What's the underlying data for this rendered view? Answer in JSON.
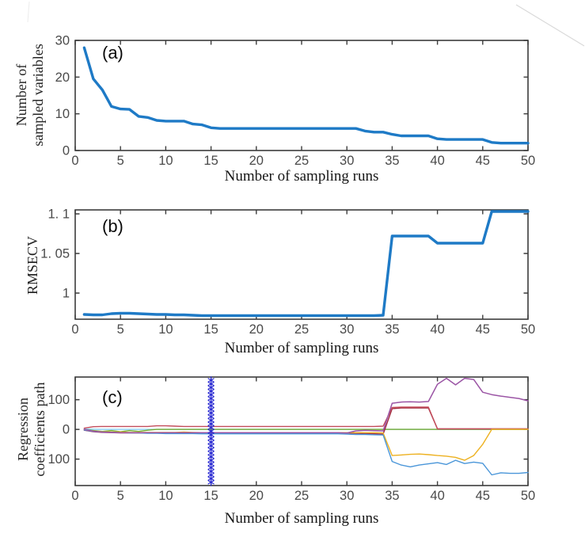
{
  "colors": {
    "axis": "#3c3c3c",
    "tick_label": "#4a4a4a",
    "label_text": "#161616",
    "main_line": "#1e7ac6",
    "marker_blue": "#2d2dd2",
    "scan_artifact": "#c9c9c9"
  },
  "chart_data": [
    {
      "type": "line",
      "tag": "(a)",
      "xlabel": "Number of sampling runs",
      "ylabel_line1": "Number of",
      "ylabel_line2": "sampled variables",
      "xlim": [
        0,
        50
      ],
      "ylim": [
        0,
        30
      ],
      "x_ticks": [
        0,
        5,
        10,
        15,
        20,
        25,
        30,
        35,
        40,
        45,
        50
      ],
      "x_tick_labels": [
        "0",
        "5",
        "10",
        "15",
        "20",
        "25",
        "30",
        "35",
        "40",
        "45",
        "50"
      ],
      "y_ticks": [
        0,
        10,
        20,
        30
      ],
      "y_tick_labels": [
        "0",
        "10",
        "20",
        "30"
      ],
      "grid": false,
      "x_first": 1,
      "x_step": 1,
      "series": [
        {
          "name": "number-of-sampled-variables",
          "color": "#1e7ac6",
          "width": 3.4,
          "values": [
            28,
            19.5,
            16.5,
            12,
            11.3,
            11.2,
            9.3,
            9,
            8.2,
            8,
            8,
            8,
            7.2,
            7,
            6.2,
            6,
            6,
            6,
            6,
            6,
            6,
            6,
            6,
            6,
            6,
            6,
            6,
            6,
            6,
            6,
            6,
            5.3,
            5,
            5,
            4.4,
            4,
            4,
            4,
            4,
            3.2,
            3,
            3,
            3,
            3,
            3,
            2.2,
            2,
            2,
            2,
            2
          ]
        }
      ]
    },
    {
      "type": "line",
      "tag": "(b)",
      "xlabel": "Number of sampling runs",
      "ylabel_line1": "RMSECV",
      "ylabel_line2": "",
      "xlim": [
        0,
        50
      ],
      "ylim": [
        0.967,
        1.105
      ],
      "x_ticks": [
        0,
        5,
        10,
        15,
        20,
        25,
        30,
        35,
        40,
        45,
        50
      ],
      "x_tick_labels": [
        "0",
        "5",
        "10",
        "15",
        "20",
        "25",
        "30",
        "35",
        "40",
        "45",
        "50"
      ],
      "y_ticks": [
        1,
        1.05,
        1.1
      ],
      "y_tick_labels": [
        "1",
        "1. 05",
        "1. 1"
      ],
      "grid": false,
      "x_first": 1,
      "x_step": 1,
      "series": [
        {
          "name": "rmsecv",
          "color": "#1e7ac6",
          "width": 3.4,
          "values": [
            0.973,
            0.9725,
            0.9725,
            0.974,
            0.9745,
            0.9745,
            0.974,
            0.9735,
            0.973,
            0.973,
            0.9725,
            0.9725,
            0.972,
            0.9715,
            0.9715,
            0.9715,
            0.9715,
            0.9715,
            0.9715,
            0.9715,
            0.9715,
            0.9715,
            0.9715,
            0.9715,
            0.9715,
            0.9715,
            0.9715,
            0.9715,
            0.9715,
            0.9715,
            0.9715,
            0.9715,
            0.9715,
            0.972,
            1.072,
            1.072,
            1.072,
            1.072,
            1.072,
            1.063,
            1.063,
            1.063,
            1.063,
            1.063,
            1.063,
            1.103,
            1.103,
            1.103,
            1.103,
            1.103
          ]
        }
      ]
    },
    {
      "type": "line",
      "tag": "(c)",
      "xlabel": "Number of sampling runs",
      "ylabel_line1": "Regression",
      "ylabel_line2": "coefficients path",
      "xlim": [
        0,
        50
      ],
      "ylim": [
        -189,
        176.3
      ],
      "x_ticks": [
        0,
        5,
        10,
        15,
        20,
        25,
        30,
        35,
        40,
        45,
        50
      ],
      "x_tick_labels": [
        "0",
        "5",
        "10",
        "15",
        "20",
        "25",
        "30",
        "35",
        "40",
        "45",
        "50"
      ],
      "y_ticks": [
        -100,
        0,
        100
      ],
      "y_tick_labels": [
        "100",
        "0",
        "100"
      ],
      "grid": false,
      "x_first": 1,
      "x_step": 1,
      "marker_column": {
        "x": 15,
        "symbol": "*",
        "color": "#2d2dd2",
        "name": "selected-sampling-run-marker"
      },
      "series": [
        {
          "name": "coef-cyan",
          "color": "#86cdee",
          "width": 1.4,
          "values": [
            1.5,
            0.5,
            0,
            0,
            0,
            0,
            0,
            0,
            0,
            0,
            0,
            0,
            0,
            0,
            0,
            0,
            0,
            0,
            0,
            0,
            0,
            0,
            0,
            0,
            0,
            0,
            0,
            0,
            0,
            0,
            0,
            0,
            0,
            0,
            0,
            0,
            0,
            0,
            0,
            0,
            0,
            0,
            0,
            0,
            0,
            0,
            0,
            0,
            0,
            0
          ]
        },
        {
          "name": "coef-green",
          "color": "#77ac30",
          "width": 1.4,
          "values": [
            -1,
            -4,
            -7,
            -4,
            -8,
            -4,
            -7,
            -3,
            0,
            0,
            0,
            0,
            0,
            0,
            0,
            0,
            0,
            0,
            0,
            0,
            0,
            0,
            0,
            0,
            0,
            0,
            0,
            0,
            0,
            0,
            0,
            0,
            0,
            0,
            0,
            0,
            0,
            0,
            0,
            0,
            0,
            0,
            0,
            0,
            0,
            0,
            0,
            0,
            0,
            0
          ]
        },
        {
          "name": "coef-maroon",
          "color": "#9e2b3f",
          "width": 1.4,
          "values": [
            -3,
            -8,
            -10,
            -11,
            -12,
            -12,
            -12,
            -12,
            -12,
            -12,
            -12,
            -12,
            -12,
            -12,
            -12,
            -12,
            -12,
            -12,
            -12,
            -12,
            -12,
            -12,
            -12,
            -12,
            -12,
            -12,
            -12,
            -12,
            -12,
            -12,
            -13,
            -14,
            -15,
            -16,
            70,
            72,
            72,
            72,
            72,
            2,
            2,
            2,
            2,
            2,
            2,
            2,
            2,
            2,
            2,
            2
          ]
        },
        {
          "name": "coef-red",
          "color": "#c44d5c",
          "width": 1.4,
          "values": [
            4,
            9,
            10,
            10,
            10,
            10,
            10,
            10,
            12,
            12,
            11,
            10,
            10,
            10,
            10,
            10,
            10,
            10,
            10,
            10,
            10,
            10,
            10,
            10,
            10,
            10,
            10,
            10,
            10,
            10,
            10,
            10,
            10,
            11,
            74,
            75,
            75,
            75,
            75,
            2,
            2,
            2,
            2,
            2,
            2,
            2,
            2,
            2,
            2,
            2
          ]
        },
        {
          "name": "coef-yellow",
          "color": "#edb120",
          "width": 1.4,
          "values": [
            -1,
            -6,
            -8,
            -9,
            -9,
            -10,
            -10,
            -10,
            -10,
            -10,
            -10,
            -9,
            -10,
            -11,
            -11,
            -11,
            -11,
            -11,
            -11,
            -11,
            -11,
            -11,
            -11,
            -11,
            -11,
            -11,
            -11,
            -11,
            -11,
            -11,
            -11,
            -11,
            -11,
            -12,
            -88,
            -86,
            -84,
            -83,
            -85,
            -88,
            -90,
            -94,
            -104,
            -88,
            -50,
            0,
            0,
            0,
            0,
            0
          ]
        },
        {
          "name": "coef-blue",
          "color": "#4a96d9",
          "width": 1.4,
          "values": [
            -2,
            -7,
            -9,
            -10,
            -11,
            -12,
            -12,
            -13,
            -13,
            -14,
            -14,
            -14,
            -14,
            -15,
            -15,
            -15,
            -15,
            -15,
            -15,
            -15,
            -15,
            -15,
            -15,
            -15,
            -15,
            -15,
            -15,
            -15,
            -15,
            -16,
            -17,
            -17,
            -18,
            -19,
            -108,
            -120,
            -126,
            -120,
            -116,
            -112,
            -118,
            -104,
            -115,
            -110,
            -114,
            -153,
            -146,
            -148,
            -148,
            -145
          ]
        },
        {
          "name": "coef-purple",
          "color": "#9b55a5",
          "width": 1.5,
          "values": [
            0,
            -6,
            -9,
            -10,
            -11,
            -11,
            -11,
            -11,
            -11,
            -11,
            -11,
            -11,
            -11,
            -11,
            -11,
            -11,
            -11,
            -11,
            -11,
            -11,
            -11,
            -11,
            -11,
            -11,
            -11,
            -11,
            -11,
            -11,
            -11,
            -12,
            -5,
            -3,
            -4,
            -5,
            88,
            92,
            93,
            92,
            94,
            152,
            172,
            150,
            172,
            168,
            125,
            117,
            112,
            108,
            104,
            96
          ]
        }
      ]
    }
  ]
}
